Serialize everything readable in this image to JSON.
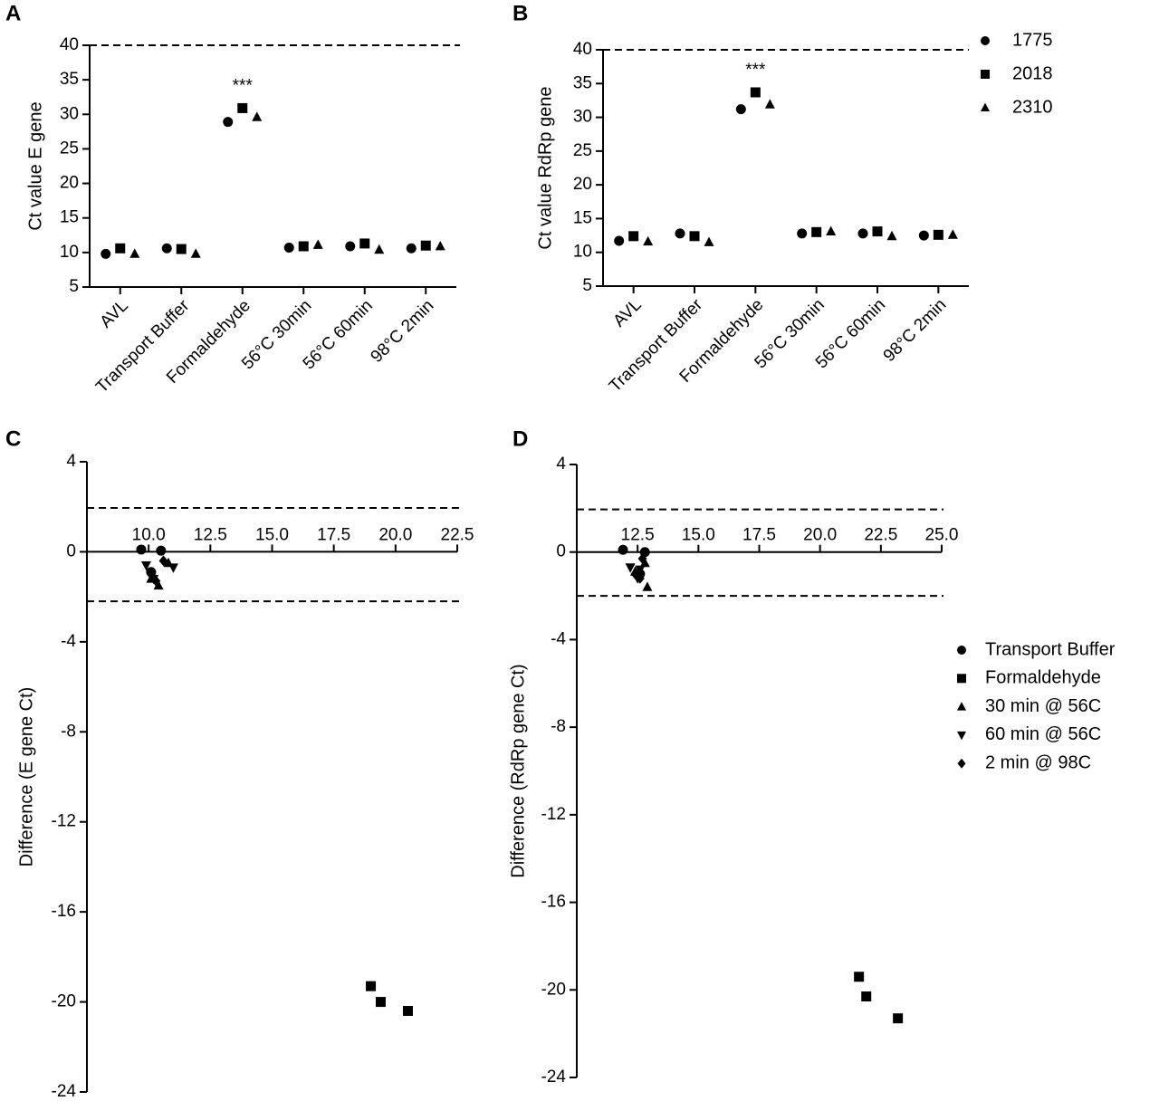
{
  "chart_data": [
    {
      "type": "dot",
      "panel_label": "A",
      "ylabel": "Ct value E gene",
      "categories": [
        "AVL",
        "Transport Buffer",
        "Formaldehyde",
        "56°C 30min",
        "56°C 60min",
        "98°C 2min"
      ],
      "series": [
        {
          "marker": "circle",
          "color": "#000000",
          "values": [
            9.8,
            10.6,
            28.9,
            10.7,
            10.9,
            10.6
          ]
        },
        {
          "marker": "square",
          "color": "#000000",
          "values": [
            10.6,
            10.5,
            30.9,
            10.9,
            11.3,
            11.0
          ]
        },
        {
          "marker": "triangle",
          "color": "#000000",
          "values": [
            9.8,
            9.8,
            29.6,
            11.1,
            10.4,
            10.9
          ]
        }
      ],
      "ylim": [
        5,
        40
      ],
      "yticks": [
        5,
        10,
        15,
        20,
        25,
        30,
        35,
        40
      ],
      "hlines": [
        40
      ],
      "annotation": "***"
    },
    {
      "type": "dot",
      "panel_label": "B",
      "ylabel": "Ct value RdRp gene",
      "categories": [
        "AVL",
        "Transport Buffer",
        "Formaldehyde",
        "56°C 30min",
        "56°C 60min",
        "98°C 2min"
      ],
      "series": [
        {
          "name": "1775",
          "marker": "circle",
          "color": "#000000",
          "values": [
            11.7,
            12.8,
            31.2,
            12.8,
            12.8,
            12.5
          ]
        },
        {
          "name": "2018",
          "marker": "square",
          "color": "#000000",
          "values": [
            12.4,
            12.4,
            33.7,
            13.0,
            13.1,
            12.6
          ]
        },
        {
          "name": "2310",
          "marker": "triangle",
          "color": "#000000",
          "values": [
            11.6,
            11.5,
            31.9,
            13.1,
            12.4,
            12.6
          ]
        }
      ],
      "ylim": [
        5,
        40
      ],
      "yticks": [
        5,
        10,
        15,
        20,
        25,
        30,
        35,
        40
      ],
      "hlines": [
        40
      ],
      "annotation": "***",
      "legend": "right"
    },
    {
      "type": "scatter",
      "panel_label": "C",
      "ylabel": "Difference (E gene Ct)",
      "xlim": [
        7.5,
        22.5
      ],
      "xticks": [
        {
          "value": 10,
          "label": "10.0"
        },
        {
          "value": 12.5,
          "label": "12.5"
        },
        {
          "value": 15,
          "label": "15.0"
        },
        {
          "value": 17.5,
          "label": "17.5"
        },
        {
          "value": 20,
          "label": "20.0"
        },
        {
          "value": 22.5,
          "label": "22.5"
        }
      ],
      "ylim": [
        -24,
        4
      ],
      "yticks": [
        -24,
        -20,
        -16,
        -12,
        -8,
        -4,
        0,
        4
      ],
      "hlines": [
        1.95,
        -2.2
      ],
      "series": [
        {
          "marker": "circle",
          "color": "#000000",
          "x": [
            9.7,
            10.5,
            10.1
          ],
          "values": [
            0.1,
            0.05,
            -0.9
          ]
        },
        {
          "marker": "square",
          "color": "#000000",
          "x": [
            19.0,
            19.4,
            20.5
          ],
          "values": [
            -19.3,
            -20.0,
            -20.4
          ]
        },
        {
          "marker": "triangle",
          "color": "#000000",
          "x": [
            10.8,
            10.4,
            10.1
          ],
          "values": [
            -0.5,
            -1.5,
            -1.2
          ]
        },
        {
          "marker": "triangle-down",
          "color": "#000000",
          "x": [
            9.9,
            11.0,
            10.2
          ],
          "values": [
            -0.6,
            -0.7,
            -1.2
          ]
        },
        {
          "marker": "diamond",
          "color": "#000000",
          "x": [
            10.1,
            10.6,
            10.3
          ],
          "values": [
            -1.0,
            -0.4,
            -1.3
          ]
        }
      ]
    },
    {
      "type": "scatter",
      "panel_label": "D",
      "ylabel": "Difference (RdRp gene Ct)",
      "xlim": [
        10,
        25
      ],
      "xticks": [
        {
          "value": 12.5,
          "label": "12.5"
        },
        {
          "value": 15,
          "label": "15.0"
        },
        {
          "value": 17.5,
          "label": "17.5"
        },
        {
          "value": 20,
          "label": "20.0"
        },
        {
          "value": 22.5,
          "label": "22.5"
        },
        {
          "value": 25,
          "label": "25.0"
        }
      ],
      "ylim": [
        -24,
        4
      ],
      "yticks": [
        -24,
        -20,
        -16,
        -12,
        -8,
        -4,
        0,
        4
      ],
      "hlines": [
        1.95,
        -2.0
      ],
      "legend": "right",
      "series": [
        {
          "name": "Transport Buffer",
          "marker": "circle",
          "color": "#000000",
          "x": [
            11.9,
            12.8,
            12.6
          ],
          "values": [
            0.1,
            0.0,
            -1.0
          ]
        },
        {
          "name": "Formaldehyde",
          "marker": "square",
          "color": "#000000",
          "x": [
            21.6,
            21.9,
            23.2
          ],
          "values": [
            -19.4,
            -20.3,
            -21.3
          ]
        },
        {
          "name": "30 min @ 56C",
          "marker": "triangle",
          "color": "#000000",
          "x": [
            12.8,
            12.9,
            12.4
          ],
          "values": [
            -0.5,
            -1.6,
            -0.9
          ]
        },
        {
          "name": "60 min @ 56C",
          "marker": "triangle-down",
          "color": "#000000",
          "x": [
            12.2,
            12.6,
            12.5
          ],
          "values": [
            -0.7,
            -0.8,
            -1.2
          ]
        },
        {
          "name": "2 min @ 98C",
          "marker": "diamond",
          "color": "#000000",
          "x": [
            12.4,
            12.7,
            12.6
          ],
          "values": [
            -1.0,
            -0.3,
            -1.2
          ]
        }
      ]
    }
  ]
}
